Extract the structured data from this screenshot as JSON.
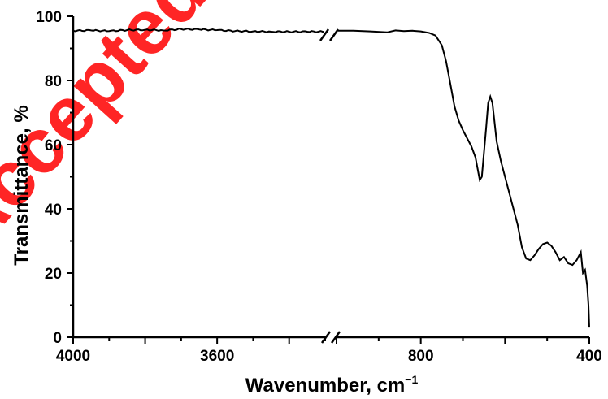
{
  "chart_data": {
    "type": "line",
    "title": "",
    "xlabel": "Wavenumber, cm",
    "xlabel_sup": "−1",
    "ylabel": "Transmittance, %",
    "ylim": [
      0,
      100
    ],
    "yticks": [
      "0",
      "20",
      "40",
      "60",
      "80",
      "100"
    ],
    "x_axis_broken": true,
    "x_segments": [
      {
        "xlim": [
          4000,
          3300
        ],
        "ticks": [
          "4000",
          "3600"
        ]
      },
      {
        "xlim": [
          1000,
          400
        ],
        "ticks": [
          "800",
          "400"
        ]
      }
    ],
    "grid": false,
    "series": [
      {
        "name": "",
        "color": "#000000",
        "segment1": {
          "x": [
            4000,
            3950,
            3900,
            3850,
            3800,
            3750,
            3700,
            3650,
            3600,
            3550,
            3500,
            3450,
            3400,
            3350,
            3300
          ],
          "y": [
            95.5,
            95.6,
            95.4,
            95.7,
            95.8,
            95.6,
            96.0,
            95.9,
            95.7,
            95.4,
            95.3,
            95.2,
            95.2,
            95.2,
            95.2
          ]
        },
        "segment2": {
          "x": [
            1000,
            960,
            920,
            880,
            860,
            840,
            820,
            800,
            780,
            765,
            750,
            740,
            730,
            720,
            710,
            700,
            690,
            680,
            670,
            660,
            655,
            645,
            640,
            635,
            630,
            625,
            620,
            610,
            600,
            590,
            580,
            570,
            560,
            550,
            540,
            530,
            520,
            510,
            500,
            490,
            480,
            470,
            460,
            450,
            440,
            430,
            420,
            415,
            410,
            405,
            402,
            400
          ],
          "y": [
            95.5,
            95.5,
            95.3,
            95.0,
            95.6,
            95.4,
            95.5,
            95.3,
            94.8,
            94.0,
            91.0,
            86.0,
            79.0,
            72.0,
            67.5,
            64.5,
            62.0,
            59.5,
            56.0,
            49.0,
            50.0,
            65.0,
            73.0,
            75.0,
            73.0,
            67.0,
            61.0,
            55.0,
            50.0,
            45.0,
            40.0,
            35.0,
            28.0,
            24.5,
            24.0,
            25.5,
            27.5,
            29.0,
            29.5,
            28.5,
            26.5,
            24.0,
            25.0,
            23.0,
            22.5,
            24.0,
            26.5,
            20.0,
            21.0,
            16.0,
            10.0,
            3.0
          ]
        }
      }
    ]
  },
  "watermark": {
    "text": "Accepted",
    "color": "#ff0000"
  }
}
